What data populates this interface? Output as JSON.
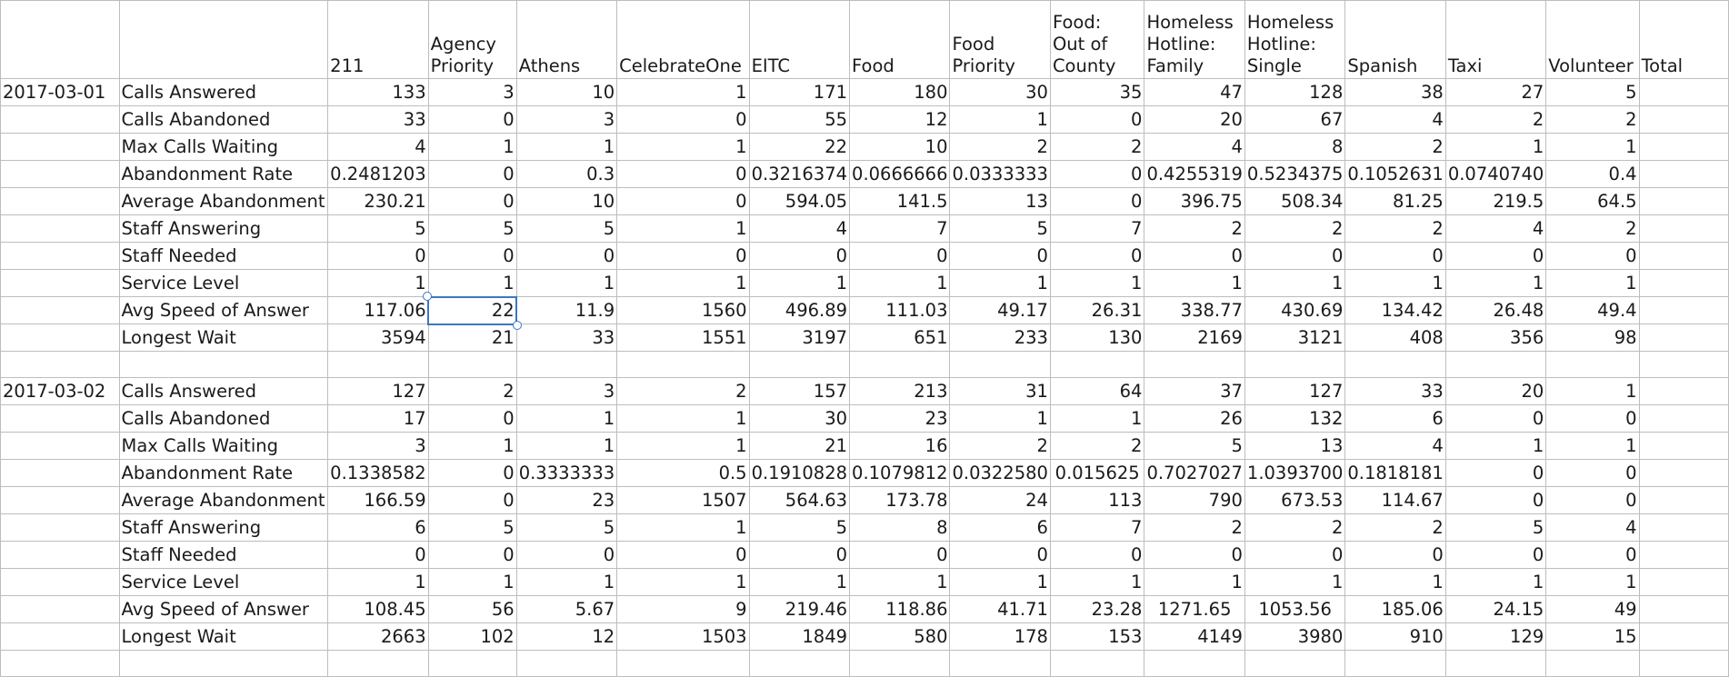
{
  "columns": [
    "",
    "",
    "211",
    "Agency\nPriority",
    "Athens",
    "CelebrateOne",
    "EITC",
    "Food",
    "Food\nPriority",
    "Food:\nOut of\nCounty",
    "Homeless\nHotline:\nFamily",
    "Homeless\nHotline:\nSingle",
    "Spanish",
    "Taxi",
    "Volunteer",
    "Total"
  ],
  "blocks": [
    {
      "date": "2017-03-01",
      "rows": [
        {
          "metric": "Calls Answered",
          "values": [
            "133",
            "3",
            "10",
            "1",
            "171",
            "180",
            "30",
            "35",
            "47",
            "128",
            "38",
            "27",
            "5"
          ]
        },
        {
          "metric": "Calls Abandoned",
          "values": [
            "33",
            "0",
            "3",
            "0",
            "55",
            "12",
            "1",
            "0",
            "20",
            "67",
            "4",
            "2",
            "2"
          ]
        },
        {
          "metric": "Max Calls Waiting",
          "values": [
            "4",
            "1",
            "1",
            "1",
            "22",
            "10",
            "2",
            "2",
            "4",
            "8",
            "2",
            "1",
            "1"
          ]
        },
        {
          "metric": "Abandonment Rate",
          "values": [
            "0.2481203",
            "0",
            "0.3",
            "0",
            "0.3216374",
            "0.0666666",
            "0.0333333",
            "0",
            "0.4255319",
            "0.5234375",
            "0.1052631",
            "0.0740740",
            "0.4"
          ]
        },
        {
          "metric": "Average Abandonment",
          "values": [
            "230.21",
            "0",
            "10",
            "0",
            "594.05",
            "141.5",
            "13",
            "0",
            "396.75",
            "508.34",
            "81.25",
            "219.5",
            "64.5"
          ]
        },
        {
          "metric": "Staff Answering",
          "values": [
            "5",
            "5",
            "5",
            "1",
            "4",
            "7",
            "5",
            "7",
            "2",
            "2",
            "2",
            "4",
            "2"
          ]
        },
        {
          "metric": "Staff Needed",
          "values": [
            "0",
            "0",
            "0",
            "0",
            "0",
            "0",
            "0",
            "0",
            "0",
            "0",
            "0",
            "0",
            "0"
          ]
        },
        {
          "metric": "Service Level",
          "values": [
            "1",
            "1",
            "1",
            "1",
            "1",
            "1",
            "1",
            "1",
            "1",
            "1",
            "1",
            "1",
            "1"
          ]
        },
        {
          "metric": "Avg Speed of Answer",
          "values": [
            "117.06",
            "22",
            "11.9",
            "1560",
            "496.89",
            "111.03",
            "49.17",
            "26.31",
            "338.77",
            "430.69",
            "134.42",
            "26.48",
            "49.4"
          ]
        },
        {
          "metric": "Longest Wait",
          "values": [
            "3594",
            "21",
            "33",
            "1551",
            "3197",
            "651",
            "233",
            "130",
            "2169",
            "3121",
            "408",
            "356",
            "98"
          ]
        }
      ]
    },
    {
      "date": "2017-03-02",
      "rows": [
        {
          "metric": "Calls Answered",
          "values": [
            "127",
            "2",
            "3",
            "2",
            "157",
            "213",
            "31",
            "64",
            "37",
            "127",
            "33",
            "20",
            "1"
          ]
        },
        {
          "metric": "Calls Abandoned",
          "values": [
            "17",
            "0",
            "1",
            "1",
            "30",
            "23",
            "1",
            "1",
            "26",
            "132",
            "6",
            "0",
            "0"
          ]
        },
        {
          "metric": "Max Calls Waiting",
          "values": [
            "3",
            "1",
            "1",
            "1",
            "21",
            "16",
            "2",
            "2",
            "5",
            "13",
            "4",
            "1",
            "1"
          ]
        },
        {
          "metric": "Abandonment Rate",
          "values": [
            "0.1338582",
            "0",
            "0.3333333",
            "0.5",
            "0.1910828",
            "0.1079812",
            "0.0322580",
            "0.015625",
            "0.7027027",
            "1.0393700",
            "0.1818181",
            "0",
            "0"
          ]
        },
        {
          "metric": "Average Abandonment",
          "values": [
            "166.59",
            "0",
            "23",
            "1507",
            "564.63",
            "173.78",
            "24",
            "113",
            "790",
            "673.53",
            "114.67",
            "0",
            "0"
          ]
        },
        {
          "metric": "Staff Answering",
          "values": [
            "6",
            "5",
            "5",
            "1",
            "5",
            "8",
            "6",
            "7",
            "2",
            "2",
            "2",
            "5",
            "4"
          ]
        },
        {
          "metric": "Staff Needed",
          "values": [
            "0",
            "0",
            "0",
            "0",
            "0",
            "0",
            "0",
            "0",
            "0",
            "0",
            "0",
            "0",
            "0"
          ]
        },
        {
          "metric": "Service Level",
          "values": [
            "1",
            "1",
            "1",
            "1",
            "1",
            "1",
            "1",
            "1",
            "1",
            "1",
            "1",
            "1",
            "1"
          ]
        },
        {
          "metric": "Avg Speed of Answer",
          "values": [
            "108.45",
            "56",
            "5.67",
            "9",
            "219.46",
            "118.86",
            "41.71",
            "23.28",
            "1271.65",
            "1053.56",
            "185.06",
            "24.15",
            "49"
          ]
        },
        {
          "metric": "Longest Wait",
          "values": [
            "2663",
            "102",
            "12",
            "1503",
            "1849",
            "580",
            "178",
            "153",
            "4149",
            "3980",
            "910",
            "129",
            "15"
          ]
        }
      ]
    }
  ],
  "selection": {
    "block": 0,
    "row": 8,
    "col": 1
  }
}
